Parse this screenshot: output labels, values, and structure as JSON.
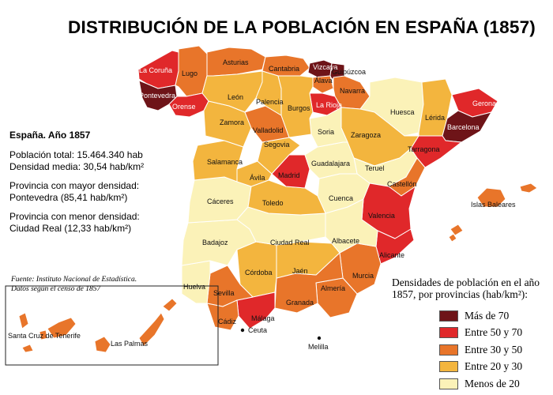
{
  "title": "DISTRIBUCIÓN DE LA POBLACIÓN EN ESPAÑA (1857)",
  "info": {
    "heading": "España. Año 1857",
    "total_line1": "Población total: 15.464.340 hab",
    "total_line2": "Densidad media: 30,54 hab/km²",
    "max_line1": "Provincia con mayor densidad:",
    "max_line2": "Pontevedra (85,41 hab/km²)",
    "min_line1": "Provincia con menor densidad:",
    "min_line2": "Ciudad Real (12,33 hab/km²)"
  },
  "source": {
    "line1": "Fuente: Instituto Nacional de Estadística.",
    "line2": "Datos según el censo de 1857"
  },
  "legend": {
    "title_line1": "Densidades de población en el año",
    "title_line2": "1857, por provincias (hab/km²):",
    "items": [
      {
        "label": "Más de 70",
        "color": "#6e1418"
      },
      {
        "label": "Entre 50 y 70",
        "color": "#e0282a"
      },
      {
        "label": "Entre 30 y 50",
        "color": "#e8752a"
      },
      {
        "label": "Entre 20 y 30",
        "color": "#f3b53e"
      },
      {
        "label": "Menos de 20",
        "color": "#fbf2b8"
      }
    ]
  },
  "provinces": {
    "la_coruna": "La Coruña",
    "lugo": "Lugo",
    "pontevedra": "Pontevedra",
    "orense": "Orense",
    "asturias": "Asturias",
    "cantabria": "Cantabria",
    "vizcaya": "Vizcaya",
    "guipuzcoa": "Guipúzcoa",
    "alava": "Álava",
    "navarra": "Navarra",
    "la_rioja": "La Rioja",
    "huesca": "Huesca",
    "gerona": "Gerona",
    "barcelona": "Barcelona",
    "lerida": "Lérida",
    "tarragona": "Tarragona",
    "zaragoza": "Zaragoza",
    "teruel": "Teruel",
    "castellon": "Castellón",
    "valencia": "Valencia",
    "alicante": "Alicante",
    "murcia": "Murcia",
    "almeria": "Almería",
    "granada": "Granada",
    "malaga": "Málaga",
    "cadiz": "Cádiz",
    "sevilla": "Sevilla",
    "huelva": "Huelva",
    "cordoba": "Córdoba",
    "jaen": "Jaén",
    "badajoz": "Badajoz",
    "caceres": "Cáceres",
    "ciudad_real": "Ciudad Real",
    "albacete": "Albacete",
    "cuenca": "Cuenca",
    "toledo": "Toledo",
    "madrid": "Madrid",
    "guadalajara": "Guadalajara",
    "avila": "Ávila",
    "segovia": "Segovia",
    "soria": "Soria",
    "salamanca": "Salamanca",
    "zamora": "Zamora",
    "valladolid": "Valladolid",
    "leon": "León",
    "palencia": "Palencia",
    "burgos": "Burgos",
    "islas_baleares": "Islas Baleares",
    "santa_cruz": "Santa Cruz de Tenerife",
    "las_palmas": "Las Palmas",
    "ceuta": "Ceuta",
    "melilla": "Melilla"
  }
}
